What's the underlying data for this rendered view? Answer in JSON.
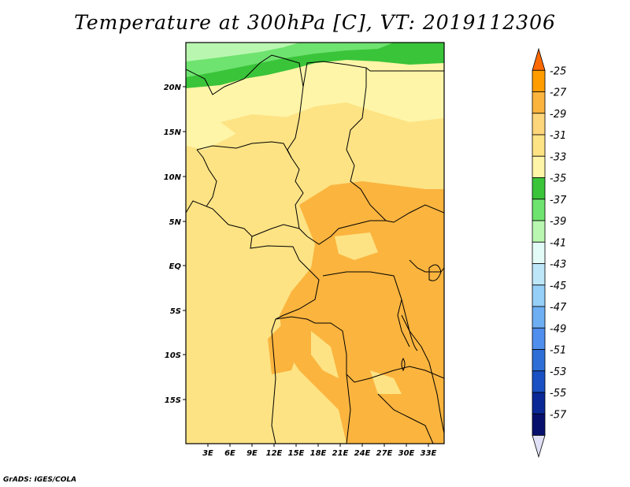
{
  "title": "Temperature at 300hPa [C], VT: 2019112306",
  "credit": "GrADS: IGES/COLA",
  "map": {
    "lat_labels": [
      "20N",
      "15N",
      "10N",
      "5N",
      "EQ",
      "5S",
      "10S",
      "15S"
    ],
    "lon_labels": [
      "3E",
      "6E",
      "9E",
      "12E",
      "15E",
      "18E",
      "21E",
      "24E",
      "27E",
      "30E",
      "33E"
    ],
    "colors": {
      "c33": "#fff5a8",
      "c31": "#fde384",
      "c29": "#fbb43e",
      "c37": "#3ac43a",
      "c39": "#6fe36f",
      "c41": "#b9f7b0"
    }
  },
  "colorbar": {
    "labels": [
      "-25",
      "-27",
      "-29",
      "-31",
      "-33",
      "-35",
      "-37",
      "-39",
      "-41",
      "-43",
      "-45",
      "-47",
      "-49",
      "-51",
      "-53",
      "-55",
      "-57"
    ],
    "colors": [
      "#ff6a00",
      "#ff9c00",
      "#fbb43e",
      "#fdd57a",
      "#fde384",
      "#fff5a8",
      "#3ac43a",
      "#6fe36f",
      "#b9f7b0",
      "#e3fbf7",
      "#bde6f9",
      "#96cff7",
      "#6eaff3",
      "#4f8eec",
      "#2f6ed6",
      "#1a50c4",
      "#0a2896",
      "#08106e",
      "#e0e0f7"
    ]
  }
}
